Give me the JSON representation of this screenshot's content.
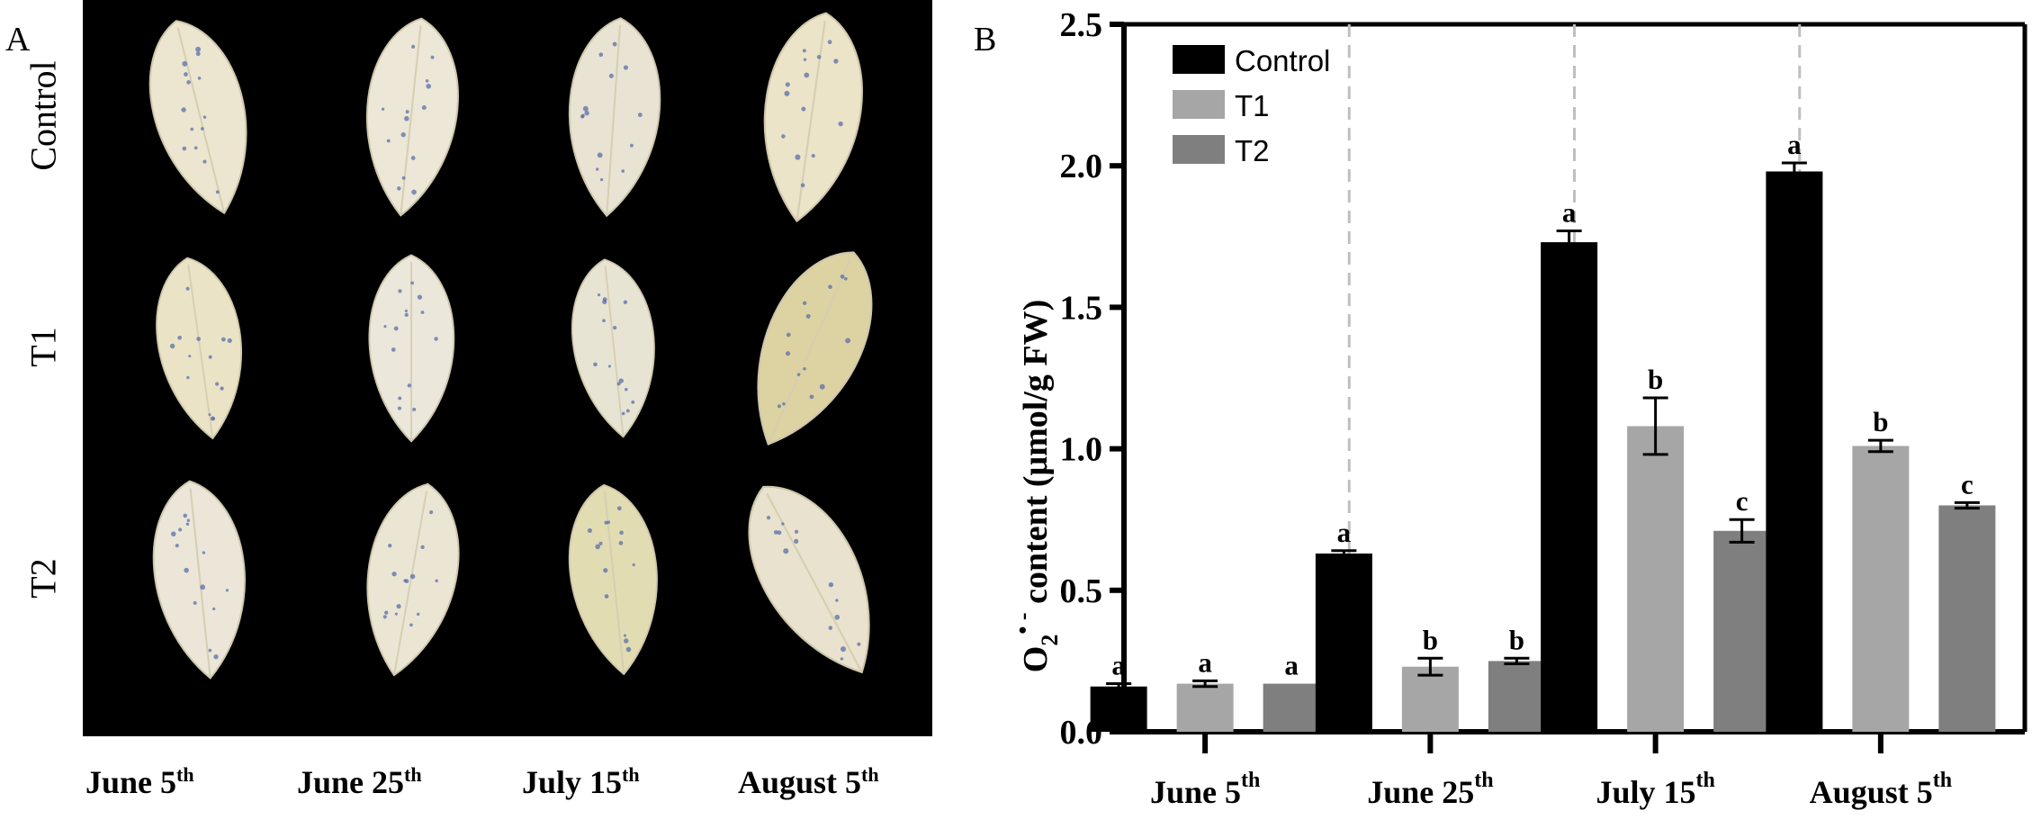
{
  "panels": {
    "a_letter": "A",
    "b_letter": "B"
  },
  "photo_panel": {
    "row_labels": [
      "Control",
      "T1",
      "T2"
    ],
    "col_labels": [
      {
        "base": "June 5",
        "sup": "th"
      },
      {
        "base": "June 25",
        "sup": "th"
      },
      {
        "base": "July 15",
        "sup": "th"
      },
      {
        "base": "August 5",
        "sup": "th"
      }
    ],
    "leaf_colors": [
      [
        "#ece5cf",
        "#ece7d6",
        "#e8e3d3",
        "#ece4c9"
      ],
      [
        "#ebe3c6",
        "#ebe7da",
        "#e8e4d3",
        "#ddd3a2"
      ],
      [
        "#ebe6d8",
        "#ebe5d4",
        "#e2dcb2",
        "#e9e2ce"
      ]
    ],
    "background_color": "#000000"
  },
  "chart_data": {
    "type": "bar",
    "categories": [
      {
        "base": "June 5",
        "sup": "th"
      },
      {
        "base": "June 25",
        "sup": "th"
      },
      {
        "base": "July 15",
        "sup": "th"
      },
      {
        "base": "August 5",
        "sup": "th"
      }
    ],
    "ylabel": {
      "base": "O",
      "sub": "2",
      "sup": "• -",
      "rest": " content (μmol/g FW)"
    },
    "ylim": [
      0,
      2.5
    ],
    "yticks": [
      "0.0",
      "0.5",
      "1.0",
      "1.5",
      "2.0",
      "2.5"
    ],
    "series": [
      {
        "name": "Control",
        "color": "#000000",
        "values": [
          0.16,
          0.63,
          1.73,
          1.98
        ],
        "errors": [
          0.01,
          0.01,
          0.04,
          0.03
        ],
        "letters": [
          "a",
          "a",
          "a",
          "a"
        ]
      },
      {
        "name": "T1",
        "color": "#a6a6a6",
        "values": [
          0.17,
          0.23,
          1.08,
          1.01
        ],
        "errors": [
          0.01,
          0.03,
          0.1,
          0.02
        ],
        "letters": [
          "a",
          "b",
          "b",
          "b"
        ]
      },
      {
        "name": "T2",
        "color": "#7f7f7f",
        "values": [
          0.17,
          0.25,
          0.71,
          0.8
        ],
        "errors": [
          0.0,
          0.01,
          0.04,
          0.01
        ],
        "letters": [
          "a",
          "b",
          "c",
          "c"
        ]
      }
    ],
    "legend_position": "top-left",
    "separators": "dashed vertical lines between categories",
    "grid": false
  }
}
